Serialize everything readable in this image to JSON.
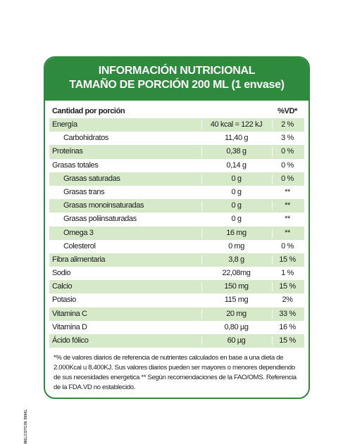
{
  "header": {
    "title": "INFORMACIÓN NUTRICIONAL",
    "subtitle": "TAMAÑO DE PORCIÓN 200 ML (1 envase)"
  },
  "table": {
    "col_nutrient": "Cantidad por porción",
    "col_vd": "%VD*",
    "rows": [
      {
        "name": "Energía",
        "amount": "40 kcal = 122 kJ",
        "vd": "2 %",
        "indent": false,
        "shade": true
      },
      {
        "name": "Carbohidratos",
        "amount": "11,40 g",
        "vd": "3 %",
        "indent": true,
        "shade": false
      },
      {
        "name": "Proteínas",
        "amount": "0,38 g",
        "vd": "0 %",
        "indent": false,
        "shade": true
      },
      {
        "name": "Grasas totales",
        "amount": "0,14 g",
        "vd": "0 %",
        "indent": false,
        "shade": false
      },
      {
        "name": "Grasas saturadas",
        "amount": "0 g",
        "vd": "0 %",
        "indent": true,
        "shade": true
      },
      {
        "name": "Grasas trans",
        "amount": "0 g",
        "vd": "**",
        "indent": true,
        "shade": false
      },
      {
        "name": "Grasas monoinsaturadas",
        "amount": "0 g",
        "vd": "**",
        "indent": true,
        "shade": true
      },
      {
        "name": "Grasas poliinsaturadas",
        "amount": "0 g",
        "vd": "**",
        "indent": true,
        "shade": false
      },
      {
        "name": "Omega 3",
        "amount": "16 mg",
        "vd": "**",
        "indent": true,
        "shade": true
      },
      {
        "name": "Colesterol",
        "amount": "0 mg",
        "vd": "0 %",
        "indent": true,
        "shade": false
      },
      {
        "name": "Fibra alimentaria",
        "amount": "3,8 g",
        "vd": "15 %",
        "indent": false,
        "shade": true
      },
      {
        "name": "Sodio",
        "amount": "22,08mg",
        "vd": "1 %",
        "indent": false,
        "shade": false
      },
      {
        "name": "Calcio",
        "amount": "150 mg",
        "vd": "15 %",
        "indent": false,
        "shade": true
      },
      {
        "name": "Potasio",
        "amount": "115 mg",
        "vd": "2%",
        "indent": false,
        "shade": false
      },
      {
        "name": "Vitamina C",
        "amount": "20 mg",
        "vd": "33 %",
        "indent": false,
        "shade": true
      },
      {
        "name": "Vitamina D",
        "amount": "0,80 µg",
        "vd": "16 %",
        "indent": false,
        "shade": false
      },
      {
        "name": "Ácido fólico",
        "amount": "60 µg",
        "vd": "15 %",
        "indent": false,
        "shade": true
      }
    ]
  },
  "footnote": "*% de valores diarios de referencia de nutrientes calculados en base a una dieta de 2.000Kcal u 8.400KJ. Sus valores diarios pueden ser mayores o menores dependiendo de sus necesidades energetica ** Según recomendaciones de la FAO/OMS. Referencia de la FDA.VD no establecido.",
  "side_code": "MELCOTCIN 3996L",
  "colors": {
    "brand_green": "#2e8b3e",
    "row_shade": "#d6e9c9"
  }
}
